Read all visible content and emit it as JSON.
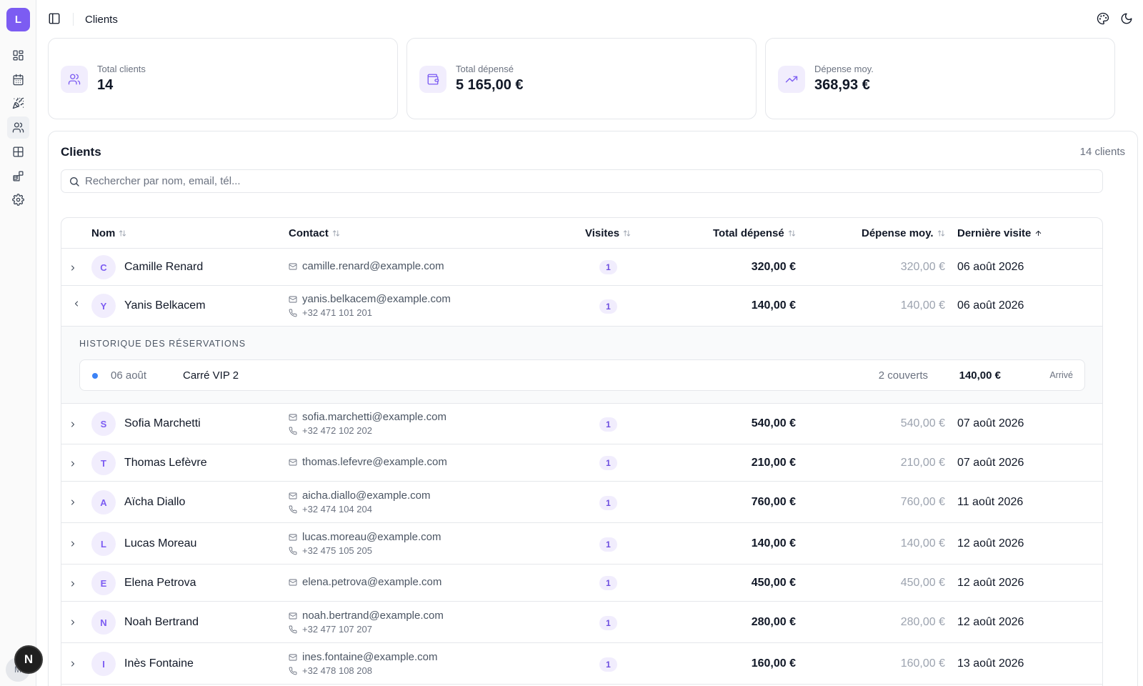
{
  "app": {
    "logo_letter": "L",
    "page_title": "Clients",
    "user_initials": "M",
    "n_badge": "N"
  },
  "nav_icons": [
    "dashboard-icon",
    "calendar-icon",
    "party-icon",
    "users-icon",
    "table-icon",
    "widgets-icon",
    "settings-icon"
  ],
  "stats": [
    {
      "label": "Total clients",
      "value": "14",
      "icon": "users-icon"
    },
    {
      "label": "Total dépensé",
      "value": "5 165,00 €",
      "icon": "wallet-icon"
    },
    {
      "label": "Dépense moy.",
      "value": "368,93 €",
      "icon": "trending-up-icon"
    }
  ],
  "clients_panel": {
    "title": "Clients",
    "count": "14 clients",
    "search_placeholder": "Rechercher par nom, email, tél...",
    "columns": {
      "name": "Nom",
      "contact": "Contact",
      "visits": "Visites",
      "total": "Total dépensé",
      "avg": "Dépense moy.",
      "last": "Dernière visite"
    },
    "rows": [
      {
        "initial": "C",
        "name": "Camille Renard",
        "email": "camille.renard@example.com",
        "phone": "",
        "visits": "1",
        "total": "320,00 €",
        "avg": "320,00 €",
        "last": "06 août 2026",
        "expanded": false
      },
      {
        "initial": "Y",
        "name": "Yanis Belkacem",
        "email": "yanis.belkacem@example.com",
        "phone": "+32 471 101 201",
        "visits": "1",
        "total": "140,00 €",
        "avg": "140,00 €",
        "last": "06 août 2026",
        "expanded": true
      },
      {
        "initial": "S",
        "name": "Sofia Marchetti",
        "email": "sofia.marchetti@example.com",
        "phone": "+32 472 102 202",
        "visits": "1",
        "total": "540,00 €",
        "avg": "540,00 €",
        "last": "07 août 2026",
        "expanded": false
      },
      {
        "initial": "T",
        "name": "Thomas Lefèvre",
        "email": "thomas.lefevre@example.com",
        "phone": "",
        "visits": "1",
        "total": "210,00 €",
        "avg": "210,00 €",
        "last": "07 août 2026",
        "expanded": false
      },
      {
        "initial": "A",
        "name": "Aïcha Diallo",
        "email": "aicha.diallo@example.com",
        "phone": "+32 474 104 204",
        "visits": "1",
        "total": "760,00 €",
        "avg": "760,00 €",
        "last": "11 août 2026",
        "expanded": false
      },
      {
        "initial": "L",
        "name": "Lucas Moreau",
        "email": "lucas.moreau@example.com",
        "phone": "+32 475 105 205",
        "visits": "1",
        "total": "140,00 €",
        "avg": "140,00 €",
        "last": "12 août 2026",
        "expanded": false
      },
      {
        "initial": "E",
        "name": "Elena Petrova",
        "email": "elena.petrova@example.com",
        "phone": "",
        "visits": "1",
        "total": "450,00 €",
        "avg": "450,00 €",
        "last": "12 août 2026",
        "expanded": false
      },
      {
        "initial": "N",
        "name": "Noah Bertrand",
        "email": "noah.bertrand@example.com",
        "phone": "+32 477 107 207",
        "visits": "1",
        "total": "280,00 €",
        "avg": "280,00 €",
        "last": "12 août 2026",
        "expanded": false
      },
      {
        "initial": "I",
        "name": "Inès Fontaine",
        "email": "ines.fontaine@example.com",
        "phone": "+32 478 108 208",
        "visits": "1",
        "total": "160,00 €",
        "avg": "160,00 €",
        "last": "13 août 2026",
        "expanded": false
      }
    ],
    "history": {
      "title": "HISTORIQUE DES RÉSERVATIONS",
      "reservation": {
        "date": "06 août",
        "table": "Carré VIP 2",
        "covers": "2 couverts",
        "amount": "140,00 €",
        "status": "Arrivé",
        "status_dot_color": "#3b82f6"
      }
    }
  },
  "colors": {
    "accent": "#7c5cf2",
    "accent_soft": "#f1edfd"
  }
}
